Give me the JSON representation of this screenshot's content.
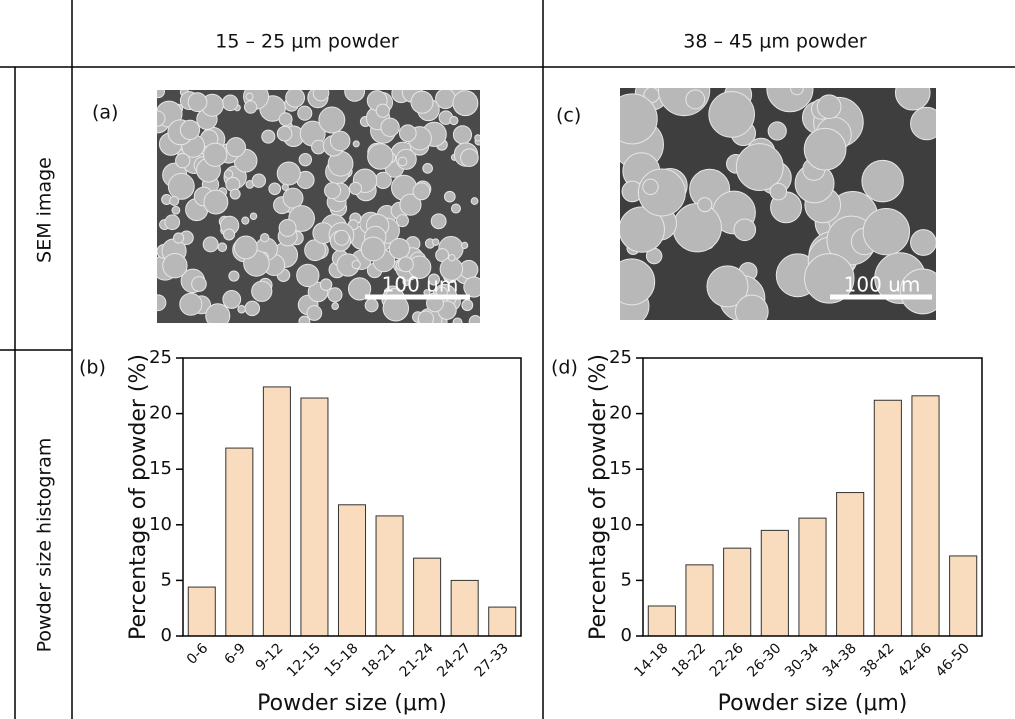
{
  "header": {
    "columns": [
      "15 – 25 μm powder",
      "38 – 45 μm powder"
    ]
  },
  "rows": [
    "SEM image",
    "Powder size histogram"
  ],
  "images": [
    {
      "label": "(a)",
      "scale_bar": "100 um"
    },
    {
      "label": "(c)",
      "scale_bar": "100 um"
    }
  ],
  "chart_data": [
    {
      "type": "bar",
      "panel_label": "(b)",
      "xlabel": "Powder size (μm)",
      "ylabel": "Percentage of powder (%)",
      "categories": [
        "0-6",
        "6-9",
        "9-12",
        "12-15",
        "15-18",
        "18-21",
        "21-24",
        "24-27",
        "27-33"
      ],
      "values": [
        4.4,
        16.9,
        22.4,
        21.4,
        11.8,
        10.8,
        7.0,
        5.0,
        2.6
      ],
      "color": "#f9dcbd",
      "ylim": [
        0,
        25
      ],
      "yticks": [
        0,
        5,
        10,
        15,
        20,
        25
      ]
    },
    {
      "type": "bar",
      "panel_label": "(d)",
      "xlabel": "Powder size (μm)",
      "ylabel": "Percentage of powder (%)",
      "categories": [
        "14-18",
        "18-22",
        "22-26",
        "26-30",
        "30-34",
        "34-38",
        "38-42",
        "42-46",
        "46-50"
      ],
      "values": [
        2.7,
        6.4,
        7.9,
        9.5,
        10.6,
        12.9,
        21.2,
        21.6,
        7.2
      ],
      "color": "#f9dcbd",
      "ylim": [
        0,
        25
      ],
      "yticks": [
        0,
        5,
        10,
        15,
        20,
        25
      ]
    }
  ]
}
